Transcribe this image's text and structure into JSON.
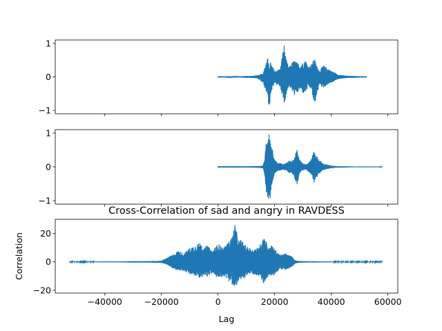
{
  "chart_data": [
    {
      "type": "line",
      "title": "",
      "xlabel": "",
      "ylabel": "",
      "xlim": [
        -57500,
        63500
      ],
      "ylim": [
        -1.1,
        1.1
      ],
      "yticks": [
        -1,
        0,
        1
      ],
      "xticks": [
        -40000,
        -20000,
        0,
        20000,
        40000,
        60000
      ],
      "show_xtick_labels": false,
      "color": "#1f77b4",
      "grid": false,
      "series": [
        {
          "x": [
            0,
            2000,
            4000,
            6000,
            8000,
            10000,
            12000,
            14000,
            16000,
            17000,
            17500,
            18000,
            18500,
            19000,
            20000,
            21000,
            22000,
            22800,
            23300,
            24000,
            25000,
            26000,
            27000,
            28000,
            29000,
            30000,
            31000,
            32000,
            33000,
            34000,
            35000,
            36000,
            37000,
            38000,
            39000,
            40000,
            41000,
            42000,
            43000,
            44000,
            46000,
            48000,
            50000,
            52000,
            52500
          ],
          "y_max": [
            0.02,
            0.02,
            0.02,
            0.03,
            0.02,
            0.03,
            0.03,
            0.05,
            0.12,
            0.45,
            0.6,
            0.3,
            0.45,
            0.35,
            0.18,
            0.22,
            0.25,
            0.72,
            1.0,
            0.55,
            0.28,
            0.42,
            0.5,
            0.42,
            0.35,
            0.45,
            0.5,
            0.3,
            0.38,
            0.55,
            0.32,
            0.18,
            0.35,
            0.3,
            0.25,
            0.18,
            0.15,
            0.08,
            0.06,
            0.05,
            0.03,
            0.03,
            0.02,
            0.02,
            0.0
          ],
          "y_min": [
            -0.02,
            -0.02,
            -0.03,
            -0.02,
            -0.02,
            -0.03,
            -0.03,
            -0.05,
            -0.2,
            -0.45,
            -0.55,
            -0.95,
            -0.75,
            -0.4,
            -0.2,
            -0.25,
            -0.3,
            -0.6,
            -0.9,
            -0.55,
            -0.28,
            -0.4,
            -0.55,
            -0.5,
            -0.35,
            -0.5,
            -0.45,
            -0.3,
            -0.38,
            -0.88,
            -0.5,
            -0.2,
            -0.35,
            -0.28,
            -0.22,
            -0.18,
            -0.14,
            -0.08,
            -0.06,
            -0.05,
            -0.03,
            -0.03,
            -0.02,
            -0.02,
            0.0
          ]
        }
      ]
    },
    {
      "type": "line",
      "title": "",
      "xlabel": "",
      "ylabel": "",
      "xlim": [
        -57500,
        63500
      ],
      "ylim": [
        -1.1,
        1.1
      ],
      "yticks": [
        -1,
        0,
        1
      ],
      "xticks": [
        -40000,
        -20000,
        0,
        20000,
        40000,
        60000
      ],
      "show_xtick_labels": false,
      "color": "#1f77b4",
      "grid": false,
      "series": [
        {
          "x": [
            0,
            4000,
            8000,
            12000,
            15000,
            16000,
            16500,
            17000,
            17500,
            18000,
            18500,
            19000,
            19500,
            20000,
            21000,
            22000,
            23000,
            24000,
            25000,
            26000,
            27000,
            27500,
            28000,
            28500,
            29000,
            30000,
            31000,
            32000,
            33000,
            34000,
            34500,
            35000,
            35500,
            36000,
            37000,
            38000,
            39000,
            40000,
            42000,
            44000,
            48000,
            52000,
            56000,
            58000
          ],
          "y_max": [
            0.02,
            0.02,
            0.02,
            0.02,
            0.03,
            0.05,
            0.25,
            0.72,
            0.8,
            1.0,
            0.78,
            0.65,
            0.45,
            0.22,
            0.12,
            0.12,
            0.08,
            0.12,
            0.18,
            0.18,
            0.25,
            0.45,
            0.55,
            0.3,
            0.2,
            0.1,
            0.08,
            0.15,
            0.25,
            0.52,
            0.32,
            0.35,
            0.2,
            0.2,
            0.1,
            0.08,
            0.06,
            0.04,
            0.02,
            0.02,
            0.01,
            0.01,
            0.01,
            0.01
          ],
          "y_min": [
            -0.02,
            -0.02,
            -0.02,
            -0.02,
            -0.03,
            -0.05,
            -0.3,
            -0.75,
            -0.92,
            -1.0,
            -0.92,
            -0.55,
            -0.45,
            -0.2,
            -0.12,
            -0.12,
            -0.08,
            -0.12,
            -0.18,
            -0.18,
            -0.32,
            -0.48,
            -0.55,
            -0.38,
            -0.2,
            -0.1,
            -0.08,
            -0.15,
            -0.22,
            -0.48,
            -0.3,
            -0.3,
            -0.2,
            -0.18,
            -0.1,
            -0.08,
            -0.06,
            -0.04,
            -0.02,
            -0.02,
            -0.01,
            -0.01,
            -0.01,
            -0.01
          ]
        }
      ]
    },
    {
      "type": "line",
      "title": "Cross-Correlation of sad and angry in RAVDESS",
      "xlabel": "Lag",
      "ylabel": "Correlation",
      "xlim": [
        -57500,
        63500
      ],
      "ylim": [
        -22,
        30
      ],
      "yticks": [
        -20,
        0,
        20
      ],
      "xticks": [
        -40000,
        -20000,
        0,
        20000,
        40000,
        60000
      ],
      "show_xtick_labels": true,
      "color": "#1f77b4",
      "grid": false,
      "series": [
        {
          "x": [
            -52500,
            -45000,
            -40000,
            -35000,
            -30000,
            -25000,
            -20000,
            -18000,
            -16000,
            -14000,
            -12000,
            -10000,
            -8000,
            -6000,
            -5000,
            -4000,
            -2000,
            0,
            2000,
            4000,
            5000,
            6000,
            6500,
            7000,
            7500,
            8000,
            10000,
            12000,
            14000,
            15000,
            16000,
            17000,
            18000,
            19000,
            20000,
            22000,
            24000,
            26000,
            27000,
            28000,
            30000,
            35000,
            40000,
            41000,
            45000,
            50000,
            55000,
            58000
          ],
          "y_max": [
            0.2,
            0.2,
            0.3,
            0.3,
            0.5,
            0.5,
            0.8,
            3.0,
            5.0,
            8.0,
            6.0,
            10.0,
            12.0,
            14.0,
            9.0,
            12.0,
            8.0,
            13.0,
            10.0,
            15.0,
            18.0,
            27.0,
            22.0,
            18.0,
            14.0,
            16.0,
            11.0,
            9.0,
            10.0,
            13.0,
            19.0,
            15.0,
            10.0,
            12.0,
            9.0,
            5.0,
            6.0,
            4.0,
            1.5,
            0.8,
            0.5,
            0.4,
            0.3,
            0.2,
            0.2,
            0.2,
            0.2,
            0.2
          ],
          "y_min": [
            -0.2,
            -0.2,
            -0.3,
            -0.3,
            -0.5,
            -0.5,
            -0.8,
            -2.0,
            -5.0,
            -6.0,
            -6.5,
            -9.0,
            -10.0,
            -12.0,
            -9.0,
            -11.0,
            -8.0,
            -12.0,
            -10.0,
            -14.0,
            -16.0,
            -21.0,
            -17.0,
            -15.0,
            -13.0,
            -14.0,
            -10.0,
            -9.0,
            -10.0,
            -11.0,
            -16.0,
            -12.0,
            -10.0,
            -11.0,
            -9.0,
            -5.0,
            -6.0,
            -4.0,
            -1.5,
            -0.8,
            -0.5,
            -0.4,
            -0.3,
            -0.2,
            -0.2,
            -0.2,
            -0.2,
            -0.2
          ]
        }
      ]
    }
  ]
}
